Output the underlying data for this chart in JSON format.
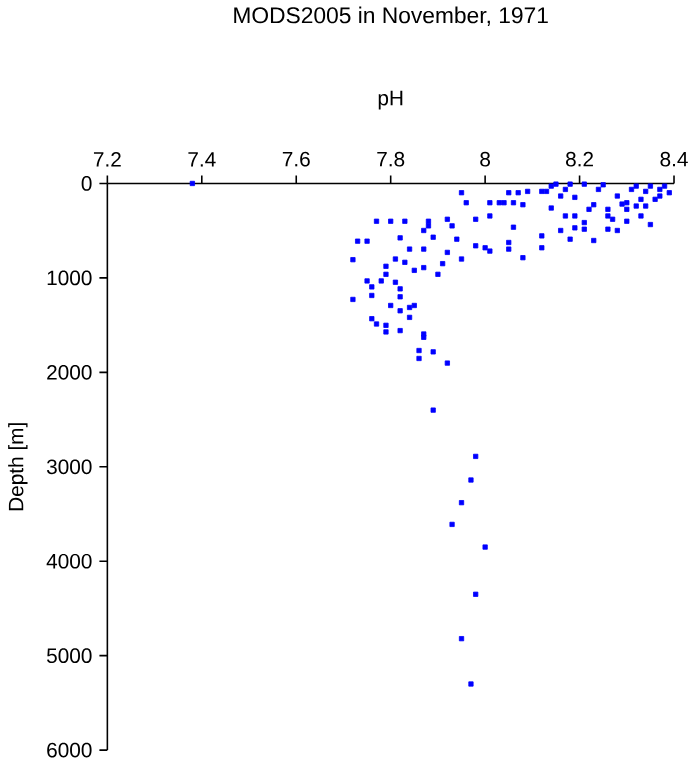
{
  "chart_data": {
    "type": "scatter",
    "title": "MODS2005 in November, 1971",
    "xlabel": "pH",
    "ylabel": "Depth [m]",
    "x": [
      7.38,
      7.72,
      7.72,
      7.73,
      7.75,
      7.77,
      7.8,
      7.83,
      7.82,
      7.75,
      7.76,
      7.76,
      7.78,
      7.79,
      7.79,
      7.8,
      7.81,
      7.81,
      7.82,
      7.82,
      7.82,
      7.84,
      7.85,
      7.84,
      7.83,
      7.84,
      7.85,
      7.87,
      7.87,
      7.87,
      7.88,
      7.88,
      7.89,
      7.9,
      7.91,
      7.92,
      7.92,
      7.93,
      7.94,
      7.95,
      7.95,
      7.96,
      7.98,
      7.98,
      8.0,
      8.01,
      8.01,
      8.01,
      7.76,
      7.77,
      7.79,
      7.79,
      7.82,
      7.87,
      7.87,
      7.86,
      7.86,
      7.89,
      7.92,
      8.03,
      8.04,
      8.06,
      8.05,
      8.07,
      8.06,
      8.05,
      8.05,
      8.08,
      8.08,
      8.09,
      8.12,
      8.13,
      8.12,
      8.12,
      8.14,
      8.14,
      8.16,
      8.18,
      8.17,
      8.19,
      8.19,
      8.19,
      8.21,
      8.21,
      8.22,
      8.23,
      8.23,
      8.24,
      8.25,
      8.26,
      8.26,
      8.27,
      8.28,
      8.28,
      8.29,
      8.3,
      8.3,
      8.31,
      8.32,
      8.33,
      8.33,
      8.34,
      8.35,
      8.35,
      8.37,
      8.38,
      8.39,
      8.37,
      8.3,
      8.26,
      8.32,
      8.34,
      8.36,
      8.18,
      8.15,
      8.16,
      8.21,
      8.17,
      7.89,
      7.98,
      7.97,
      7.95,
      7.93,
      8.0,
      7.98,
      7.95,
      7.97
    ],
    "values": [
      0,
      807,
      1228,
      611,
      611,
      400,
      400,
      400,
      576,
      1032,
      1095,
      1186,
      1032,
      877,
      962,
      1292,
      800,
      1046,
      1116,
      1200,
      1348,
      1313,
      1292,
      1418,
      835,
      695,
      920,
      891,
      695,
      498,
      400,
      449,
      569,
      962,
      849,
      730,
      379,
      449,
      590,
      800,
      98,
      204,
      660,
      379,
      681,
      716,
      204,
      344,
      1432,
      1488,
      1502,
      1572,
      1558,
      1594,
      1629,
      1769,
      1853,
      1783,
      1902,
      204,
      204,
      204,
      98,
      98,
      463,
      625,
      695,
      786,
      225,
      84,
      84,
      84,
      555,
      681,
      28,
      260,
      498,
      590,
      63,
      147,
      344,
      470,
      484,
      7,
      274,
      225,
      604,
      63,
      14,
      344,
      484,
      379,
      498,
      133,
      218,
      274,
      400,
      63,
      28,
      168,
      344,
      84,
      435,
      28,
      63,
      28,
      98,
      133,
      204,
      274,
      239,
      239,
      168,
      7,
      7,
      133,
      414,
      344,
      2400,
      2890,
      3140,
      3380,
      3610,
      3850,
      4350,
      4820,
      5300
    ],
    "color": "#0000ff",
    "marker": "square",
    "xlim": [
      7.2,
      8.4
    ],
    "ylim": [
      6000,
      0
    ],
    "xticks": [
      7.2,
      7.4,
      7.6,
      7.8,
      8,
      8.2,
      8.4
    ],
    "yticks": [
      0,
      1000,
      2000,
      3000,
      4000,
      5000,
      6000
    ]
  }
}
